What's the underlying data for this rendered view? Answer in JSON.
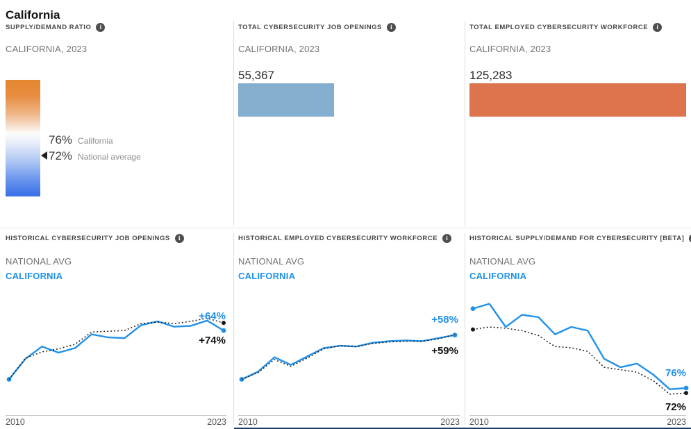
{
  "page": {
    "title": "California"
  },
  "icons": {
    "info": "i"
  },
  "colors": {
    "accent_blue": "#2191e9",
    "national_black": "#1a1a1a",
    "bar_blue": "#84aecf",
    "bar_orange": "#de744e",
    "gradient_top": "#e5862f",
    "gradient_bottom": "#4076e8",
    "footer_navy": "#203a68"
  },
  "panels": {
    "supply_demand": {
      "header": "SUPPLY/DEMAND RATIO",
      "subtitle": "CALIFORNIA, 2023"
    },
    "openings": {
      "header": "TOTAL CYBERSECURITY JOB OPENINGS",
      "subtitle": "CALIFORNIA, 2023"
    },
    "workforce": {
      "header": "TOTAL EMPLOYED CYBERSECURITY WORKFORCE",
      "subtitle": "CALIFORNIA, 2023"
    },
    "hist_openings": {
      "header": "HISTORICAL CYBERSECURITY JOB OPENINGS",
      "legend_national": "NATIONAL AVG",
      "legend_state": "CALIFORNIA"
    },
    "hist_workforce": {
      "header": "HISTORICAL EMPLOYED CYBERSECURITY WORKFORCE",
      "legend_national": "NATIONAL AVG",
      "legend_state": "CALIFORNIA"
    },
    "hist_ratio": {
      "header": "HISTORICAL SUPPLY/DEMAND FOR CYBERSECURITY [BETA]",
      "legend_national": "NATIONAL AVG",
      "legend_state": "CALIFORNIA"
    }
  },
  "chart_data": [
    {
      "type": "gradient-scale",
      "title": "SUPPLY/DEMAND RATIO",
      "subtitle": "CALIFORNIA, 2023",
      "scale_top_color": "#e5862f",
      "scale_bottom_color": "#4076e8",
      "points": [
        {
          "label": "California",
          "value": "76%"
        },
        {
          "label": "National average",
          "value": "72%",
          "marker": true
        }
      ]
    },
    {
      "type": "bar",
      "title": "TOTAL CYBERSECURITY JOB OPENINGS",
      "region": "CALIFORNIA, 2023",
      "value": 55367,
      "display_value": "55,367",
      "scale_max": 125283,
      "color": "#84aecf"
    },
    {
      "type": "bar",
      "title": "TOTAL EMPLOYED CYBERSECURITY WORKFORCE",
      "region": "CALIFORNIA, 2023",
      "value": 125283,
      "display_value": "125,283",
      "scale_max": 125283,
      "color": "#de744e"
    },
    {
      "type": "line",
      "title": "HISTORICAL CYBERSECURITY JOB OPENINGS",
      "x": [
        2010,
        2011,
        2012,
        2013,
        2014,
        2015,
        2016,
        2017,
        2018,
        2019,
        2020,
        2021,
        2022,
        2023
      ],
      "x_start_label": "2010",
      "x_end_label": "2023",
      "ylim": [
        -45,
        115
      ],
      "unit": "percent change since 2010",
      "series": [
        {
          "name": "CALIFORNIA",
          "color": "#2191e9",
          "dotted": false,
          "dot_start": true,
          "dot_end": true,
          "values": [
            0,
            27,
            43,
            35,
            41,
            59,
            55,
            54,
            71,
            76,
            69,
            70,
            77,
            64
          ],
          "end_label": "+64%"
        },
        {
          "name": "NATIONAL AVG",
          "color": "#1a1a1a",
          "dotted": true,
          "dot_start": false,
          "dot_end": true,
          "values": [
            0,
            28,
            36,
            40,
            46,
            62,
            63,
            64,
            73,
            75,
            73,
            76,
            80,
            74
          ],
          "end_label": "+74%"
        }
      ]
    },
    {
      "type": "line",
      "title": "HISTORICAL EMPLOYED CYBERSECURITY WORKFORCE",
      "x": [
        2010,
        2011,
        2012,
        2013,
        2014,
        2015,
        2016,
        2017,
        2018,
        2019,
        2020,
        2021,
        2022,
        2023
      ],
      "x_start_label": "2010",
      "x_end_label": "2023",
      "ylim": [
        -45,
        115
      ],
      "unit": "percent change since 2010",
      "series": [
        {
          "name": "CALIFORNIA",
          "color": "#2191e9",
          "dotted": false,
          "dot_start": true,
          "dot_end": true,
          "values": [
            0,
            10,
            29,
            19,
            30,
            41,
            44,
            43,
            48,
            50,
            51,
            50,
            54,
            58
          ],
          "end_label": "+58%"
        },
        {
          "name": "NATIONAL AVG",
          "color": "#1a1a1a",
          "dotted": true,
          "dot_start": false,
          "dot_end": false,
          "values": [
            0,
            9,
            26,
            17,
            28,
            40,
            44,
            43,
            47,
            49,
            50,
            50,
            53,
            59
          ],
          "end_label": "+59%"
        }
      ]
    },
    {
      "type": "line",
      "title": "HISTORICAL SUPPLY/DEMAND FOR CYBERSECURITY [BETA]",
      "x": [
        2010,
        2011,
        2012,
        2013,
        2014,
        2015,
        2016,
        2017,
        2018,
        2019,
        2020,
        2021,
        2022,
        2023
      ],
      "x_start_label": "2010",
      "x_end_label": "2023",
      "ylim": [
        55,
        155
      ],
      "unit": "supply/demand ratio percent",
      "series": [
        {
          "name": "CALIFORNIA",
          "color": "#2191e9",
          "dotted": false,
          "dot_start": true,
          "dot_end": true,
          "values": [
            141,
            145,
            126,
            136,
            134,
            120,
            126,
            123,
            100,
            93,
            96,
            87,
            75,
            76
          ],
          "end_label": "76%"
        },
        {
          "name": "NATIONAL AVG",
          "color": "#1a1a1a",
          "dotted": true,
          "dot_start": true,
          "dot_end": true,
          "values": [
            124,
            126,
            125,
            123,
            119,
            110,
            109,
            106,
            93,
            91,
            89,
            82,
            71,
            72
          ],
          "end_label": "72%"
        }
      ]
    }
  ]
}
